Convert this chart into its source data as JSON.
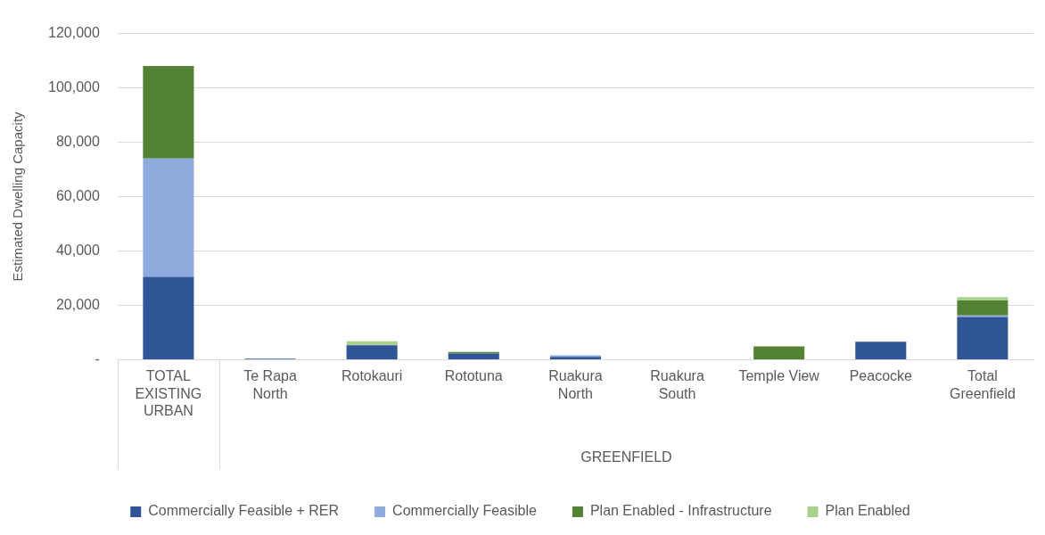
{
  "chart_data": {
    "type": "bar",
    "stacked": true,
    "ylabel": "Estimated Dwelling Capacity",
    "categories": [
      "TOTAL EXISTING URBAN",
      "Te Rapa North",
      "Rotokauri",
      "Rototuna",
      "Ruakura North",
      "Ruakura South",
      "Temple View",
      "Peacocke",
      "Total Greenfield"
    ],
    "series": [
      {
        "name": "Commercially Feasible + RER",
        "color": "#2f5597",
        "values": [
          30500,
          400,
          5300,
          2300,
          1000,
          0,
          0,
          6600,
          15700
        ]
      },
      {
        "name": "Commercially Feasible",
        "color": "#8faadc",
        "values": [
          43500,
          0,
          0,
          0,
          600,
          0,
          0,
          0,
          600
        ]
      },
      {
        "name": "Plan Enabled - Infrastructure",
        "color": "#548235",
        "values": [
          34100,
          0,
          0,
          500,
          0,
          0,
          4900,
          0,
          5500
        ]
      },
      {
        "name": "Plan Enabled",
        "color": "#a9d18e",
        "values": [
          0,
          0,
          1500,
          0,
          0,
          0,
          0,
          0,
          1200
        ]
      }
    ],
    "ylim": [
      0,
      120000
    ],
    "yticks": [
      {
        "value": 0,
        "label": "-"
      },
      {
        "value": 20000,
        "label": "20,000"
      },
      {
        "value": 40000,
        "label": "40,000"
      },
      {
        "value": 60000,
        "label": "60,000"
      },
      {
        "value": 80000,
        "label": "80,000"
      },
      {
        "value": 100000,
        "label": "100,000"
      },
      {
        "value": 120000,
        "label": "120,000"
      }
    ],
    "grid": "y",
    "legend": "bottom",
    "annotations": [
      "GREENFIELD"
    ]
  }
}
